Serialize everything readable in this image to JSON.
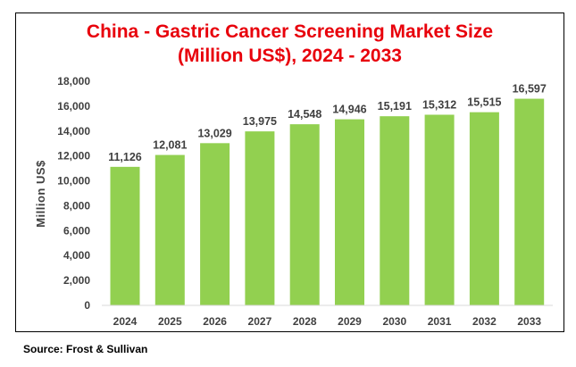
{
  "chart_data": {
    "type": "bar",
    "title": "China - Gastric Cancer Screening Market Size (Million US$), 2024 - 2033",
    "title_lines": [
      "China - Gastric Cancer Screening Market Size",
      "(Million US$), 2024 - 2033"
    ],
    "xlabel": "",
    "ylabel": "Million US$",
    "categories": [
      "2024",
      "2025",
      "2026",
      "2027",
      "2028",
      "2029",
      "2030",
      "2031",
      "2032",
      "2033"
    ],
    "values": [
      11126,
      12081,
      13029,
      13975,
      14548,
      14946,
      15191,
      15312,
      15515,
      16597
    ],
    "data_labels": [
      "11,126",
      "12,081",
      "13,029",
      "13,975",
      "14,548",
      "14,946",
      "15,191",
      "15,312",
      "15,515",
      "16,597"
    ],
    "ylim": [
      0,
      18000
    ],
    "yticks": [
      0,
      2000,
      4000,
      6000,
      8000,
      10000,
      12000,
      14000,
      16000,
      18000
    ],
    "ytick_labels": [
      "0",
      "2,000",
      "4,000",
      "6,000",
      "8,000",
      "10,000",
      "12,000",
      "14,000",
      "16,000",
      "18,000"
    ],
    "grid": false,
    "bar_color": "#92d050",
    "title_color": "#e8000b"
  },
  "source": "Source: Frost & Sullivan"
}
